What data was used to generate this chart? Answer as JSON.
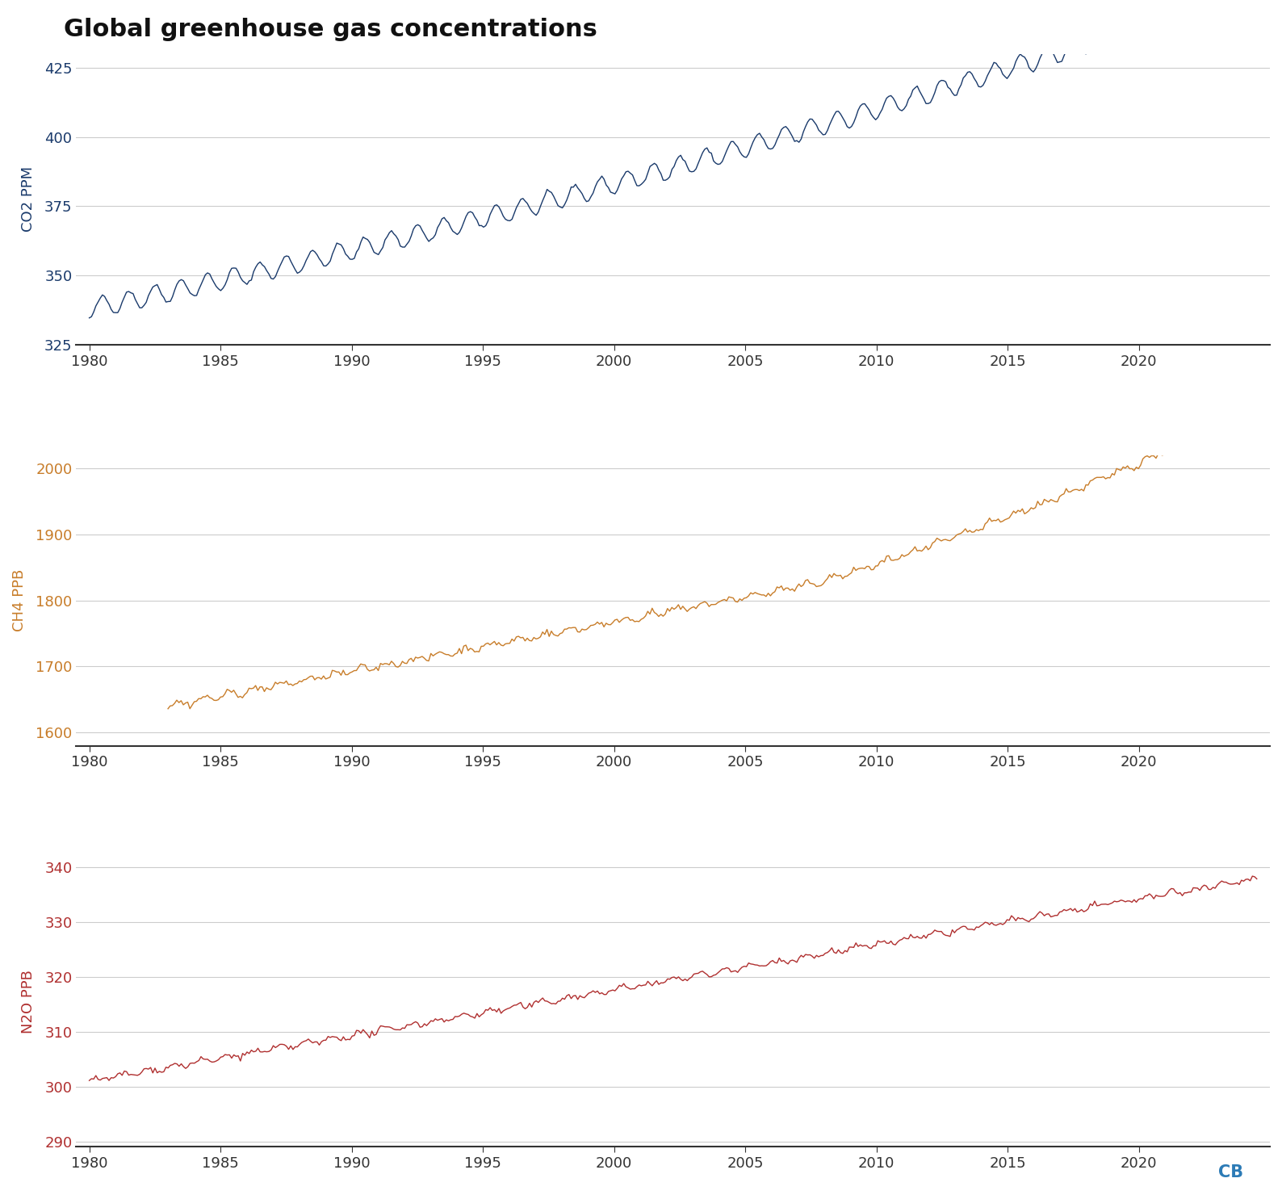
{
  "title": "Global greenhouse gas concentrations",
  "title_fontsize": 22,
  "title_fontweight": "bold",
  "background_color": "#ffffff",
  "co2": {
    "ylabel": "CO2 PPM",
    "ylabel_color": "#1a3a6b",
    "line_color": "#1a3a6b",
    "ylim": [
      325,
      430
    ],
    "yticks": [
      325,
      350,
      375,
      400,
      425
    ],
    "xlim": [
      1979.5,
      2025
    ],
    "xticks": [
      1980,
      1985,
      1990,
      1995,
      2000,
      2005,
      2010,
      2015,
      2020
    ]
  },
  "ch4": {
    "ylabel": "CH4 PPB",
    "ylabel_color": "#c87d2a",
    "line_color": "#c87d2a",
    "ylim": [
      1580,
      2020
    ],
    "yticks": [
      1600,
      1700,
      1800,
      1900,
      2000
    ],
    "xlim": [
      1979.5,
      2025
    ],
    "xticks": [
      1980,
      1985,
      1990,
      1995,
      2000,
      2005,
      2010,
      2015,
      2020
    ]
  },
  "n2o": {
    "ylabel": "N2O PPB",
    "ylabel_color": "#b03030",
    "line_color": "#b03030",
    "ylim": [
      289,
      342
    ],
    "yticks": [
      290,
      300,
      310,
      320,
      330,
      340
    ],
    "xlim": [
      1979.5,
      2025
    ],
    "xticks": [
      1980,
      1985,
      1990,
      1995,
      2000,
      2005,
      2010,
      2015,
      2020
    ]
  },
  "grid_color": "#cccccc",
  "tick_color": "#333333",
  "cb_color": "#2c7bb6",
  "figsize": [
    15.88,
    14.8
  ]
}
